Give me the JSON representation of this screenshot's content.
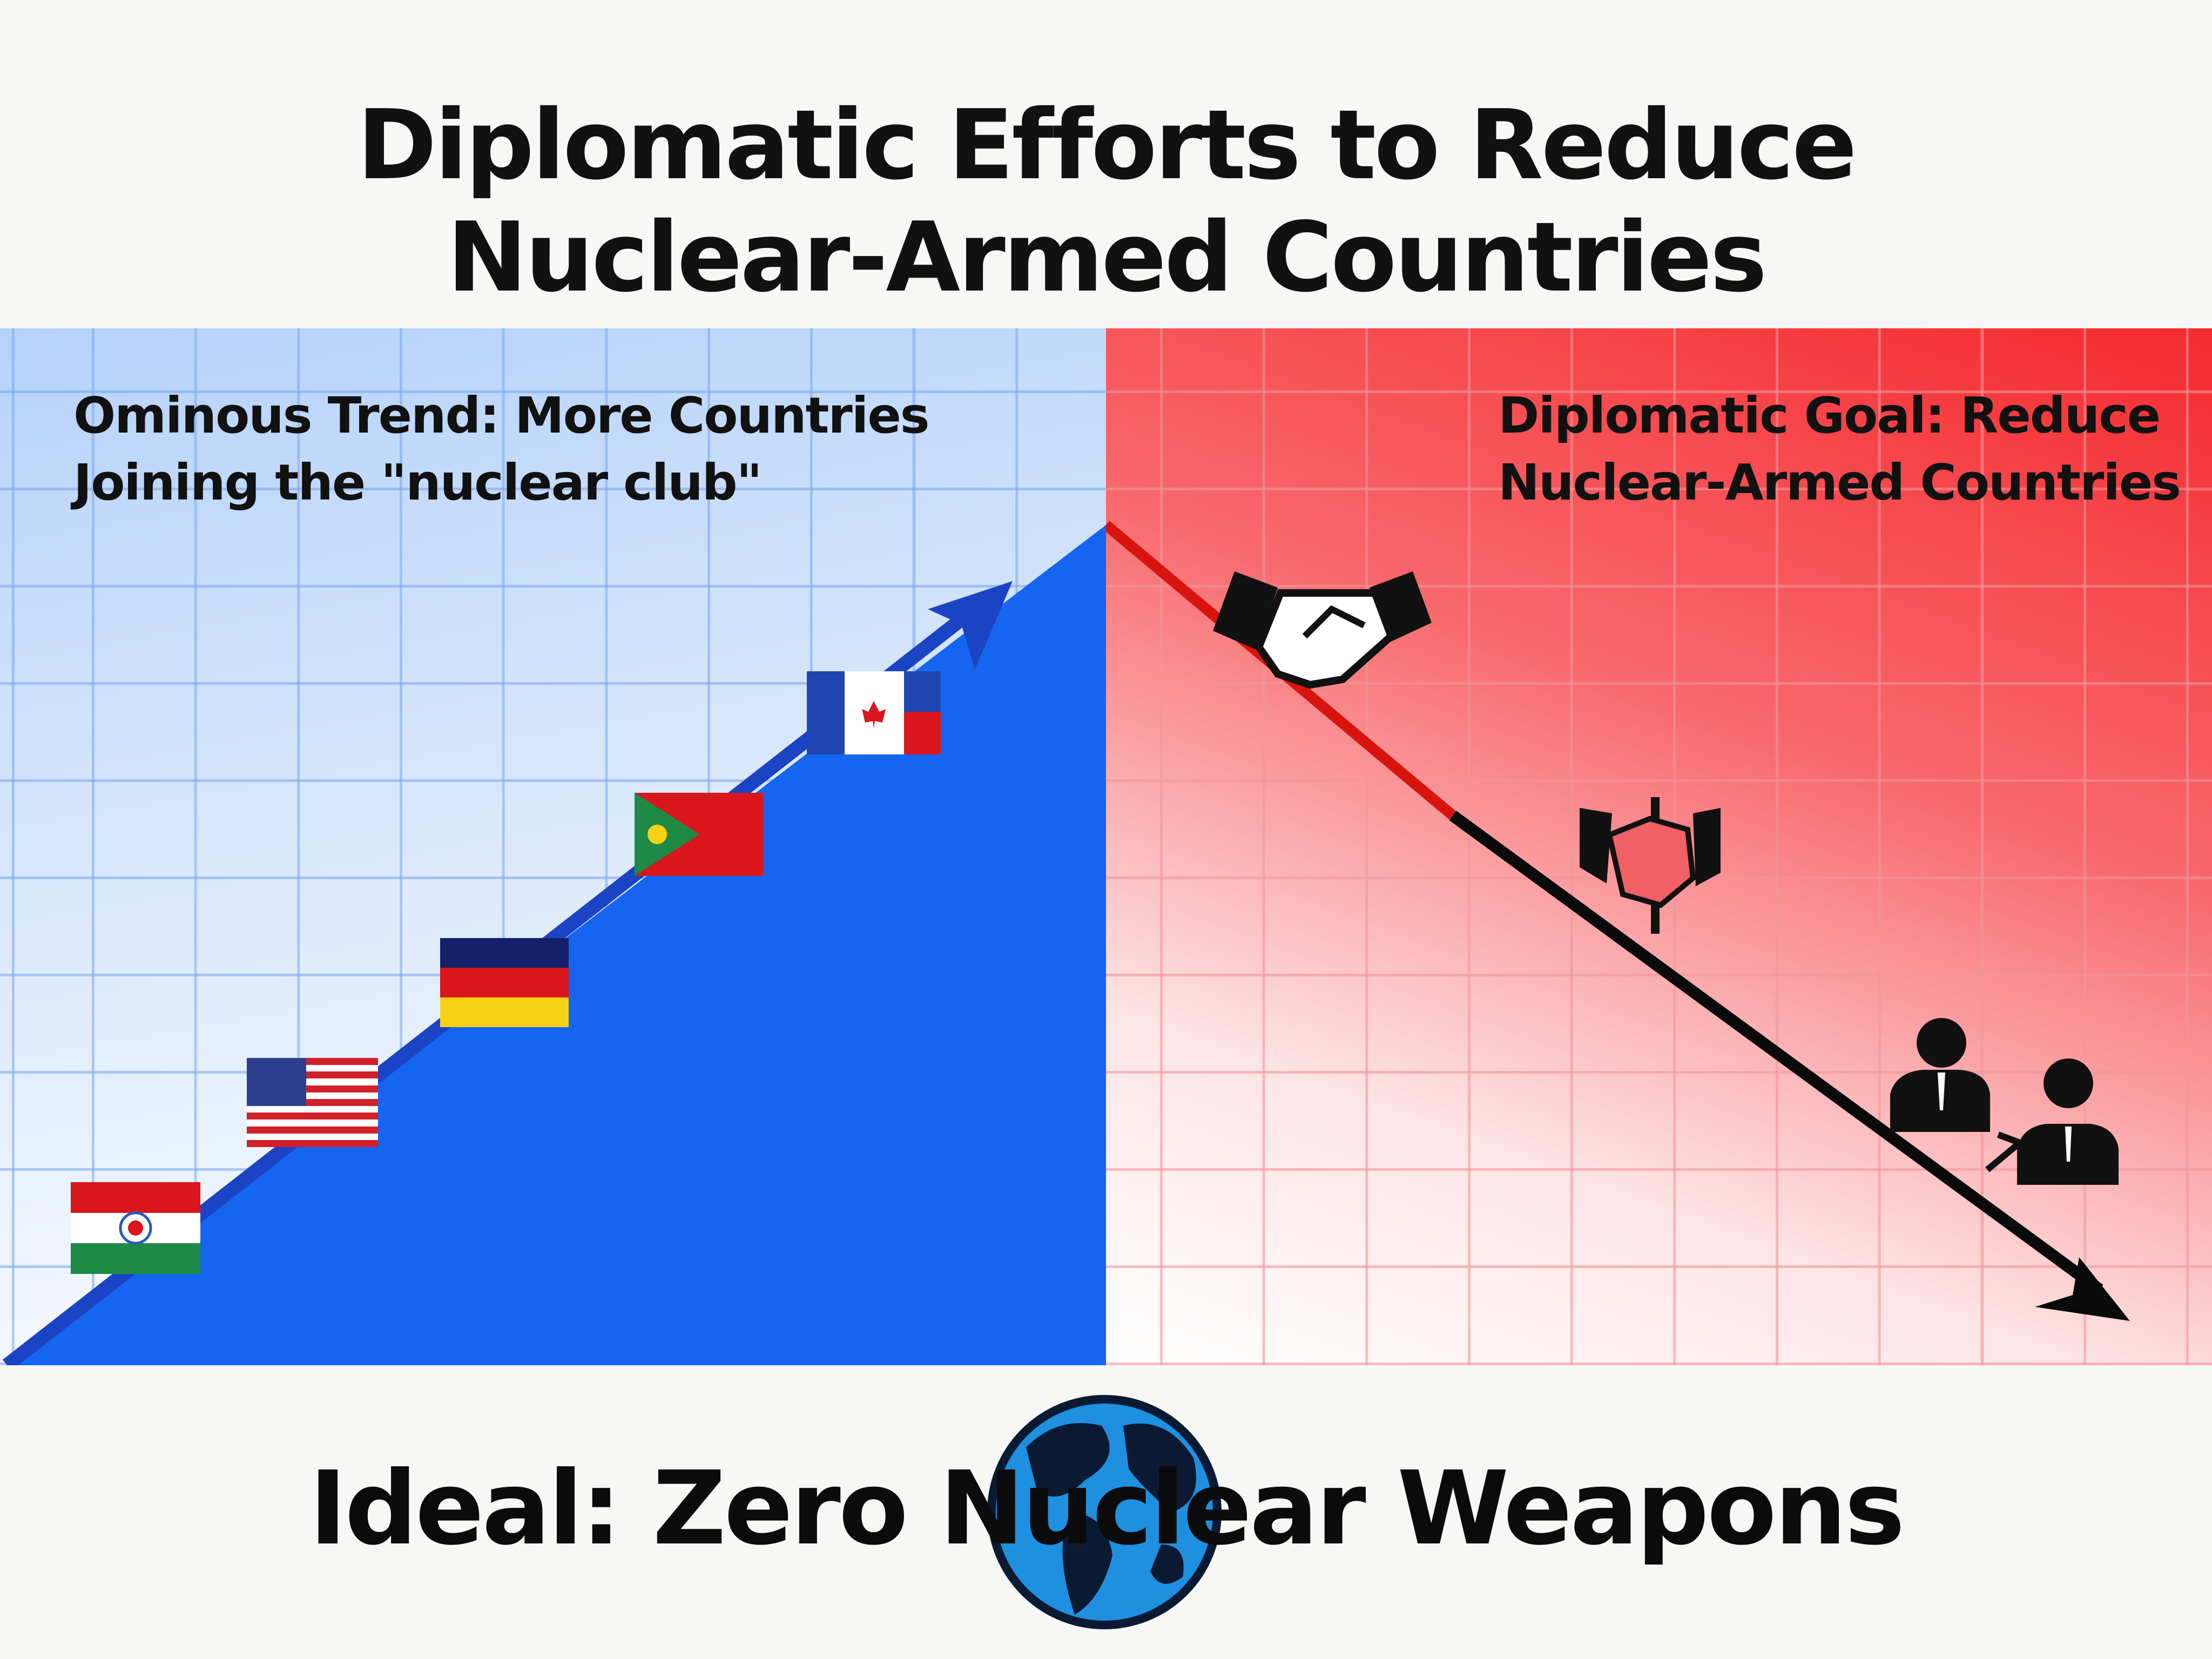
{
  "title": {
    "line1": "Diplomatic Efforts to Reduce",
    "line2": "Nuclear-Armed Countries"
  },
  "left_panel": {
    "label_line1": "Ominous Trend: More Countries",
    "label_line2": "Joining the \"nuclear club\"",
    "trend": "up",
    "colors": {
      "fill": "#1565f0",
      "arrow": "#1a44c4",
      "background": "#b5d2fa"
    },
    "flags": [
      "flag-red-white-green-star-icon",
      "flag-usa-icon",
      "flag-navy-red-yellow-icon",
      "flag-green-red-sun-icon",
      "flag-blue-white-red-maple-icon"
    ]
  },
  "right_panel": {
    "label_line1": "Diplomatic Goal: Reduce",
    "label_line2": "Nuclear-Armed Countries",
    "trend": "down",
    "colors": {
      "background": "#f42a2e",
      "line_start": "#d8140f",
      "arrow": "#0a0a0a"
    },
    "icons": [
      "handshake-icon",
      "handshake-treaty-icon",
      "diplomats-meeting-icon"
    ]
  },
  "bottom": {
    "text": "Ideal: Zero Nuclear Weapons",
    "icon": "globe-icon"
  }
}
